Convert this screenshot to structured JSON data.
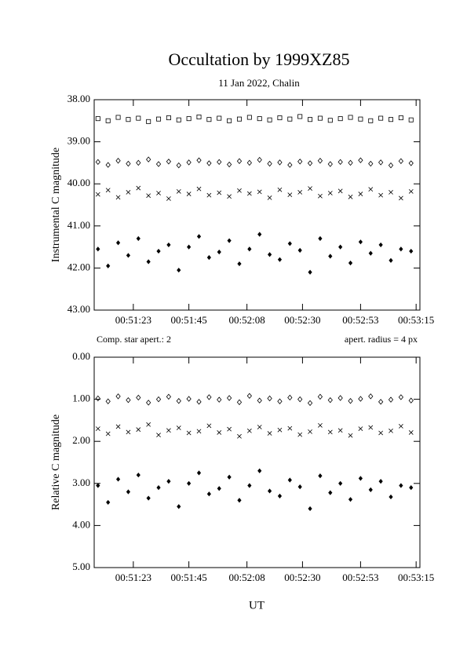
{
  "chart_data": [
    {
      "type": "scatter",
      "title": "Occultation by 1999XZ85",
      "subtitle": "11 Jan 2022, Chalin",
      "y_label": "Instrumental C magnitude",
      "annotations": [
        "Comp. star apert.: 2",
        "apert. radius = 4 px"
      ],
      "xlim": [
        7.5,
        136.5
      ],
      "ylim": [
        38,
        43
      ],
      "y_inverted": true,
      "xticks": [
        {
          "value": 23,
          "label": "00:51:23"
        },
        {
          "value": 45,
          "label": "00:51:45"
        },
        {
          "value": 68,
          "label": "00:52:08"
        },
        {
          "value": 90,
          "label": "00:52:30"
        },
        {
          "value": 113,
          "label": "00:52:53"
        },
        {
          "value": 135,
          "label": "00:53:15"
        }
      ],
      "yticks": [
        {
          "value": 38,
          "label": "38.00"
        },
        {
          "value": 39,
          "label": "39.00"
        },
        {
          "value": 40,
          "label": "40.00"
        },
        {
          "value": 41,
          "label": "41.00"
        },
        {
          "value": 42,
          "label": "42.00"
        },
        {
          "value": 43,
          "label": "43.00"
        }
      ],
      "x": [
        9,
        13,
        17,
        21,
        25,
        29,
        33,
        37,
        41,
        45,
        49,
        53,
        57,
        61,
        65,
        69,
        73,
        77,
        81,
        85,
        89,
        93,
        97,
        101,
        105,
        109,
        113,
        117,
        121,
        125,
        129,
        133
      ],
      "series": [
        {
          "marker": "square-open",
          "color": "#000000",
          "values": [
            38.45,
            38.5,
            38.42,
            38.47,
            38.44,
            38.52,
            38.46,
            38.43,
            38.48,
            38.45,
            38.41,
            38.47,
            38.44,
            38.5,
            38.46,
            38.42,
            38.45,
            38.48,
            38.43,
            38.46,
            38.4,
            38.47,
            38.44,
            38.49,
            38.45,
            38.42,
            38.46,
            38.5,
            38.44,
            38.47,
            38.43,
            38.48
          ]
        },
        {
          "marker": "diamond-open",
          "color": "#000000",
          "values": [
            39.48,
            39.55,
            39.45,
            39.52,
            39.5,
            39.42,
            39.53,
            39.47,
            39.56,
            39.49,
            39.44,
            39.51,
            39.48,
            39.54,
            39.46,
            39.5,
            39.43,
            39.52,
            39.49,
            39.55,
            39.47,
            39.51,
            39.45,
            39.53,
            39.48,
            39.5,
            39.44,
            39.52,
            39.49,
            39.56,
            39.46,
            39.51
          ]
        },
        {
          "marker": "x",
          "color": "#000000",
          "values": [
            40.25,
            40.15,
            40.32,
            40.2,
            40.1,
            40.28,
            40.22,
            40.35,
            40.18,
            40.24,
            40.12,
            40.27,
            40.21,
            40.3,
            40.16,
            40.23,
            40.19,
            40.33,
            40.14,
            40.26,
            40.2,
            40.11,
            40.29,
            40.22,
            40.17,
            40.31,
            40.24,
            40.13,
            40.27,
            40.2,
            40.34,
            40.18
          ]
        },
        {
          "marker": "diamond-filled",
          "color": "#000000",
          "values": [
            41.55,
            41.95,
            41.4,
            41.7,
            41.3,
            41.85,
            41.6,
            41.45,
            42.05,
            41.5,
            41.25,
            41.75,
            41.62,
            41.35,
            41.9,
            41.55,
            41.2,
            41.68,
            41.8,
            41.42,
            41.58,
            42.1,
            41.3,
            41.72,
            41.5,
            41.88,
            41.38,
            41.65,
            41.45,
            41.82,
            41.55,
            41.6
          ]
        }
      ]
    },
    {
      "type": "scatter",
      "y_label": "Relative C magnitude",
      "x_label": "UT",
      "xlim": [
        7.5,
        136.5
      ],
      "ylim": [
        0,
        5
      ],
      "y_inverted": true,
      "xticks": [
        {
          "value": 23,
          "label": "00:51:23"
        },
        {
          "value": 45,
          "label": "00:51:45"
        },
        {
          "value": 68,
          "label": "00:52:08"
        },
        {
          "value": 90,
          "label": "00:52:30"
        },
        {
          "value": 113,
          "label": "00:52:53"
        },
        {
          "value": 135,
          "label": "00:53:15"
        }
      ],
      "yticks": [
        {
          "value": 0,
          "label": "0.00"
        },
        {
          "value": 1,
          "label": "1.00"
        },
        {
          "value": 2,
          "label": "2.00"
        },
        {
          "value": 3,
          "label": "3.00"
        },
        {
          "value": 4,
          "label": "4.00"
        },
        {
          "value": 5,
          "label": "5.00"
        }
      ],
      "x": [
        9,
        13,
        17,
        21,
        25,
        29,
        33,
        37,
        41,
        45,
        49,
        53,
        57,
        61,
        65,
        69,
        73,
        77,
        81,
        85,
        89,
        93,
        97,
        101,
        105,
        109,
        113,
        117,
        121,
        125,
        129,
        133
      ],
      "series": [
        {
          "marker": "diamond-open",
          "color": "#000000",
          "values": [
            0.98,
            1.05,
            0.93,
            1.02,
            0.96,
            1.08,
            1.0,
            0.94,
            1.04,
            0.99,
            1.06,
            0.95,
            1.01,
            0.97,
            1.07,
            0.92,
            1.03,
            0.98,
            1.05,
            0.96,
            1.0,
            1.09,
            0.94,
            1.02,
            0.97,
            1.04,
            0.99,
            0.93,
            1.06,
            1.01,
            0.95,
            1.03
          ]
        },
        {
          "marker": "x",
          "color": "#000000",
          "values": [
            1.7,
            1.82,
            1.65,
            1.78,
            1.72,
            1.6,
            1.85,
            1.74,
            1.68,
            1.8,
            1.76,
            1.63,
            1.79,
            1.71,
            1.88,
            1.75,
            1.66,
            1.81,
            1.73,
            1.69,
            1.84,
            1.77,
            1.62,
            1.78,
            1.74,
            1.86,
            1.7,
            1.67,
            1.8,
            1.75,
            1.64,
            1.79
          ]
        },
        {
          "marker": "diamond-filled",
          "color": "#000000",
          "values": [
            3.05,
            3.45,
            2.9,
            3.2,
            2.8,
            3.35,
            3.1,
            2.95,
            3.55,
            3.0,
            2.75,
            3.25,
            3.12,
            2.85,
            3.4,
            3.05,
            2.7,
            3.18,
            3.3,
            2.92,
            3.08,
            3.6,
            2.82,
            3.22,
            3.0,
            3.38,
            2.88,
            3.15,
            2.95,
            3.32,
            3.05,
            3.1
          ]
        }
      ]
    }
  ]
}
